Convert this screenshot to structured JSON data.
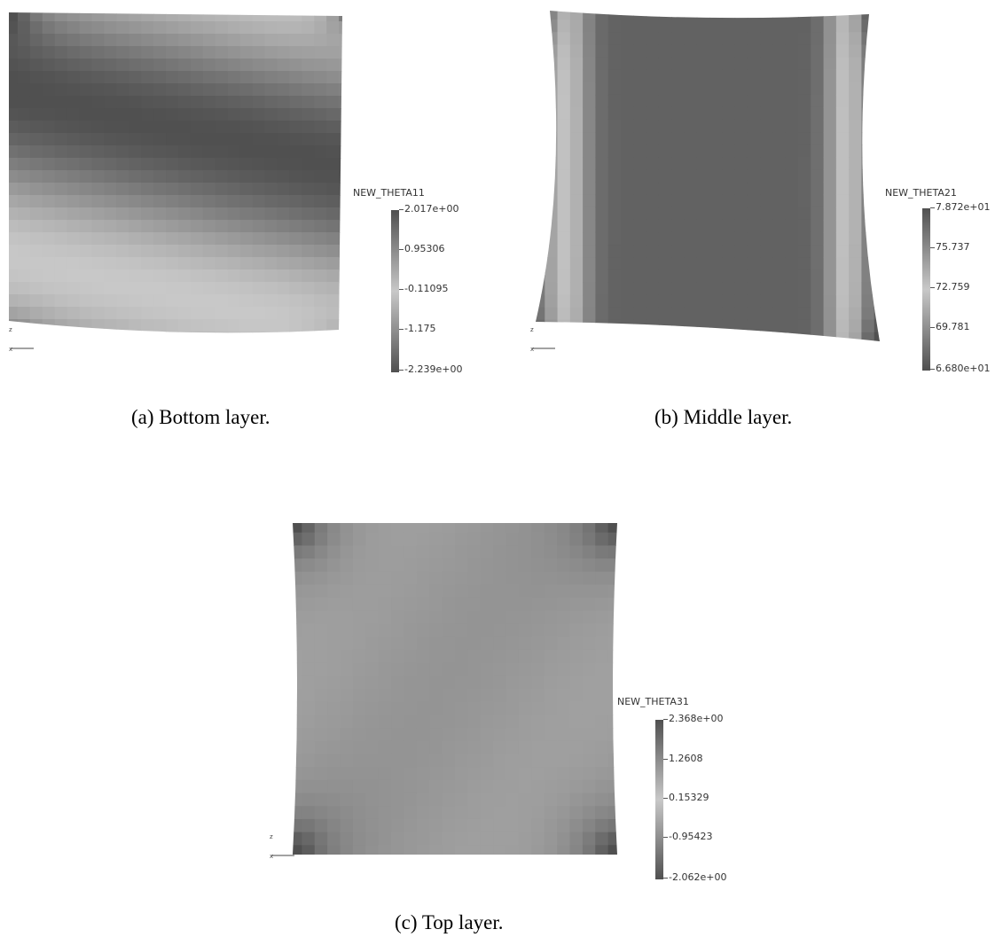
{
  "figure": {
    "panels": [
      {
        "id": "a",
        "caption": "(a) Bottom layer.",
        "colorbar": {
          "title": "NEW_THETA11",
          "ticks": [
            "2.017e+00",
            "0.95306",
            "-0.11095",
            "-1.175",
            "-2.239e+00"
          ]
        }
      },
      {
        "id": "b",
        "caption": "(b) Middle layer.",
        "colorbar": {
          "title": "NEW_THETA21",
          "ticks": [
            "7.872e+01",
            "75.737",
            "72.759",
            "69.781",
            "6.680e+01"
          ]
        }
      },
      {
        "id": "c",
        "caption": "(c) Top layer.",
        "colorbar": {
          "title": "NEW_THETA31",
          "ticks": [
            "2.368e+00",
            "1.2608",
            "0.15329",
            "-0.95423",
            "-2.062e+00"
          ]
        }
      }
    ]
  },
  "colors": {
    "dark": "#505050",
    "mid": "#8c8c8c",
    "light": "#c6c6c6"
  }
}
